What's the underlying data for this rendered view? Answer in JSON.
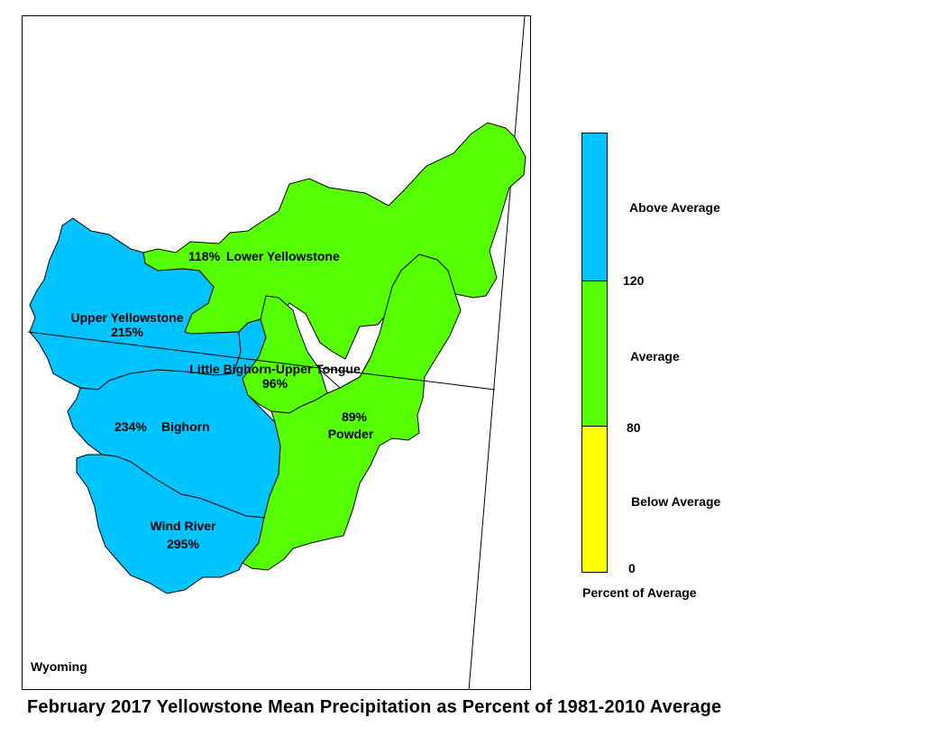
{
  "title": "February 2017 Yellowstone Mean Precipitation as Percent of 1981-2010 Average",
  "state_label": "Wyoming",
  "colors": {
    "above": "#00c4ff",
    "average": "#55ff00",
    "below": "#ffff00",
    "outline": "#000000"
  },
  "basins": [
    {
      "name": "Lower Yellowstone",
      "percent": "118%",
      "category": "average"
    },
    {
      "name": "Upper Yellowstone",
      "percent": "215%",
      "category": "above"
    },
    {
      "name": "Little Bighorn-Upper Tongue",
      "percent": "96%",
      "category": "average"
    },
    {
      "name": "Bighorn",
      "percent": "234%",
      "category": "above"
    },
    {
      "name": "Powder",
      "percent": "89%",
      "category": "average"
    },
    {
      "name": "Wind River",
      "percent": "295%",
      "category": "above"
    }
  ],
  "legend": {
    "classes": [
      {
        "label": "Above Average",
        "color": "#00c4ff"
      },
      {
        "label": "Average",
        "color": "#55ff00"
      },
      {
        "label": "Below Average",
        "color": "#ffff00"
      }
    ],
    "breaks": [
      "120",
      "80",
      "0"
    ],
    "caption": "Percent of Average"
  }
}
